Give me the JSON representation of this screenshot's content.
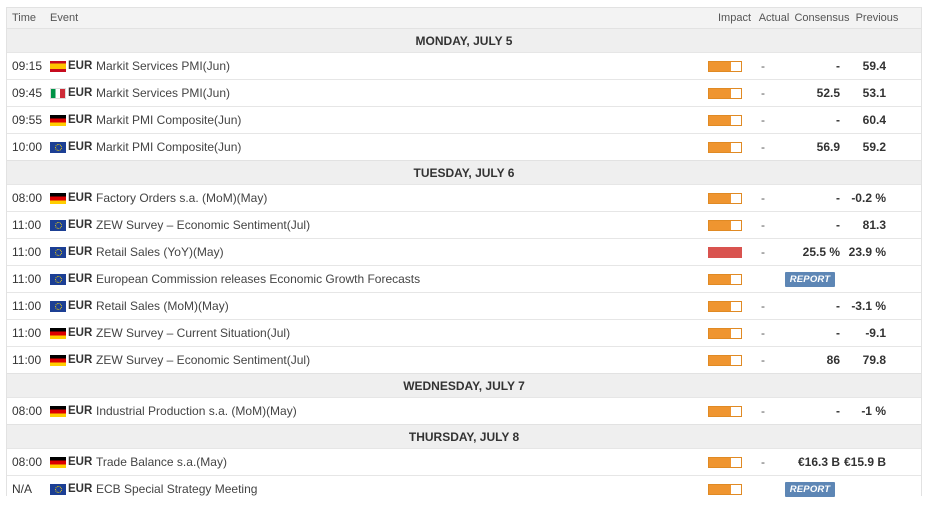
{
  "header": {
    "time": "Time",
    "event": "Event",
    "impact": "Impact",
    "actual": "Actual",
    "consensus": "Consensus",
    "previous": "Previous"
  },
  "colors": {
    "impact_medium": "#ef9530",
    "impact_high": "#d9534f",
    "report_button": "#5d86b5"
  },
  "days": [
    {
      "label": "MONDAY, JULY 5",
      "events": [
        {
          "time": "09:15",
          "flag": "spain-flag-icon",
          "currency": "EUR",
          "event": "Markit Services PMI(Jun)",
          "impact": "medium",
          "actual": "-",
          "consensus": "-",
          "previous": "59.4"
        },
        {
          "time": "09:45",
          "flag": "italy-flag-icon",
          "currency": "EUR",
          "event": "Markit Services PMI(Jun)",
          "impact": "medium",
          "actual": "-",
          "consensus": "52.5",
          "previous": "53.1"
        },
        {
          "time": "09:55",
          "flag": "germany-flag-icon",
          "currency": "EUR",
          "event": "Markit PMI Composite(Jun)",
          "impact": "medium",
          "actual": "-",
          "consensus": "-",
          "previous": "60.4"
        },
        {
          "time": "10:00",
          "flag": "eu-flag-icon",
          "currency": "EUR",
          "event": "Markit PMI Composite(Jun)",
          "impact": "medium",
          "actual": "-",
          "consensus": "56.9",
          "previous": "59.2"
        }
      ]
    },
    {
      "label": "TUESDAY, JULY 6",
      "events": [
        {
          "time": "08:00",
          "flag": "germany-flag-icon",
          "currency": "EUR",
          "event": "Factory Orders s.a. (MoM)(May)",
          "impact": "medium",
          "actual": "-",
          "consensus": "-",
          "previous": "-0.2 %"
        },
        {
          "time": "11:00",
          "flag": "eu-flag-icon",
          "currency": "EUR",
          "event": "ZEW Survey – Economic Sentiment(Jul)",
          "impact": "medium",
          "actual": "-",
          "consensus": "-",
          "previous": "81.3"
        },
        {
          "time": "11:00",
          "flag": "eu-flag-icon",
          "currency": "EUR",
          "event": "Retail Sales (YoY)(May)",
          "impact": "high",
          "actual": "-",
          "consensus": "25.5 %",
          "previous": "23.9 %"
        },
        {
          "time": "11:00",
          "flag": "eu-flag-icon",
          "currency": "EUR",
          "event": "European Commission releases Economic Growth Forecasts",
          "impact": "medium",
          "report": "REPORT"
        },
        {
          "time": "11:00",
          "flag": "eu-flag-icon",
          "currency": "EUR",
          "event": "Retail Sales (MoM)(May)",
          "impact": "medium",
          "actual": "-",
          "consensus": "-",
          "previous": "-3.1 %"
        },
        {
          "time": "11:00",
          "flag": "germany-flag-icon",
          "currency": "EUR",
          "event": "ZEW Survey – Current Situation(Jul)",
          "impact": "medium",
          "actual": "-",
          "consensus": "-",
          "previous": "-9.1"
        },
        {
          "time": "11:00",
          "flag": "germany-flag-icon",
          "currency": "EUR",
          "event": "ZEW Survey – Economic Sentiment(Jul)",
          "impact": "medium",
          "actual": "-",
          "consensus": "86",
          "previous": "79.8"
        }
      ]
    },
    {
      "label": "WEDNESDAY, JULY 7",
      "events": [
        {
          "time": "08:00",
          "flag": "germany-flag-icon",
          "currency": "EUR",
          "event": "Industrial Production s.a. (MoM)(May)",
          "impact": "medium",
          "actual": "-",
          "consensus": "-",
          "previous": "-1 %"
        }
      ]
    },
    {
      "label": "THURSDAY, JULY 8",
      "events": [
        {
          "time": "08:00",
          "flag": "germany-flag-icon",
          "currency": "EUR",
          "event": "Trade Balance s.a.(May)",
          "impact": "medium",
          "actual": "-",
          "consensus": "€16.3 B",
          "previous": "€15.9 B"
        },
        {
          "time": "N/A",
          "flag": "eu-flag-icon",
          "currency": "EUR",
          "event": "ECB Special Strategy Meeting",
          "impact": "medium",
          "report": "REPORT"
        }
      ]
    }
  ]
}
